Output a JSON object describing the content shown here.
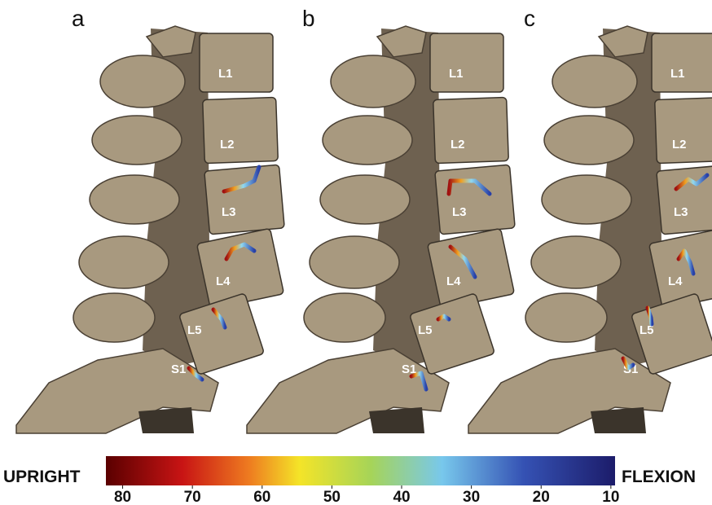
{
  "panels": [
    {
      "label": "a",
      "vertebrae": [
        "L1",
        "L2",
        "L3",
        "L4",
        "L5",
        "S1"
      ]
    },
    {
      "label": "b",
      "vertebrae": [
        "L1",
        "L2",
        "L3",
        "L4",
        "L5",
        "S1"
      ]
    },
    {
      "label": "c",
      "vertebrae": [
        "L1",
        "L2",
        "L3",
        "L4",
        "L5",
        "S1"
      ]
    }
  ],
  "colorbar": {
    "left_label": "UPRIGHT",
    "right_label": "FLEXION",
    "lim": [
      82.4,
      9.4
    ],
    "ticks": [
      80,
      70,
      60,
      50,
      40,
      30,
      20,
      10
    ]
  }
}
